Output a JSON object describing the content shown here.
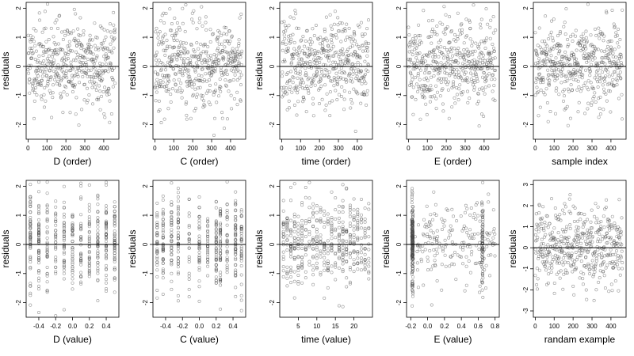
{
  "chart_data": [
    {
      "type": "scatter",
      "panel": "D (order)",
      "xlabel": "D (order)",
      "ylabel": "residuals",
      "xlim": [
        -10,
        480
      ],
      "ylim": [
        -2.5,
        2.2
      ],
      "xticks": [
        0,
        100,
        200,
        300,
        400
      ],
      "xtick_labels": [
        "0",
        "100",
        "200",
        "300",
        "400"
      ],
      "yticks": [
        -2,
        -1,
        0,
        1,
        2
      ],
      "ytick_labels": [
        "-2",
        "-1",
        "0",
        "1",
        "2"
      ],
      "hline": 0,
      "n_points": 460,
      "x_kind": "order",
      "x_range": [
        0,
        460
      ],
      "y_mean": 0.1,
      "y_sd": 0.75,
      "seed": 11
    },
    {
      "type": "scatter",
      "panel": "C (order)",
      "xlabel": "C (order)",
      "ylabel": "residuals",
      "xlim": [
        -10,
        480
      ],
      "ylim": [
        -2.5,
        2.2
      ],
      "xticks": [
        0,
        100,
        200,
        300,
        400
      ],
      "xtick_labels": [
        "0",
        "100",
        "200",
        "300",
        "400"
      ],
      "yticks": [
        -2,
        -1,
        0,
        1,
        2
      ],
      "ytick_labels": [
        "-2",
        "-1",
        "0",
        "1",
        "2"
      ],
      "hline": 0,
      "n_points": 460,
      "x_kind": "order",
      "x_range": [
        0,
        460
      ],
      "y_mean": 0.1,
      "y_sd": 0.75,
      "seed": 23
    },
    {
      "type": "scatter",
      "panel": "time (order)",
      "xlabel": "time (order)",
      "ylabel": "residuals",
      "xlim": [
        -10,
        480
      ],
      "ylim": [
        -2.5,
        2.2
      ],
      "xticks": [
        0,
        100,
        200,
        300,
        400
      ],
      "xtick_labels": [
        "0",
        "100",
        "200",
        "300",
        "400"
      ],
      "yticks": [
        -2,
        -1,
        0,
        1,
        2
      ],
      "ytick_labels": [
        "-2",
        "-1",
        "0",
        "1",
        "2"
      ],
      "hline": 0,
      "n_points": 460,
      "x_kind": "order",
      "x_range": [
        0,
        460
      ],
      "y_mean": 0.1,
      "y_sd": 0.75,
      "seed": 37
    },
    {
      "type": "scatter",
      "panel": "E (order)",
      "xlabel": "E (order)",
      "ylabel": "residuals",
      "xlim": [
        -10,
        480
      ],
      "ylim": [
        -2.5,
        2.2
      ],
      "xticks": [
        0,
        100,
        200,
        300,
        400
      ],
      "xtick_labels": [
        "0",
        "100",
        "200",
        "300",
        "400"
      ],
      "yticks": [
        -2,
        -1,
        0,
        1,
        2
      ],
      "ytick_labels": [
        "-2",
        "-1",
        "0",
        "1",
        "2"
      ],
      "hline": 0,
      "n_points": 460,
      "x_kind": "order",
      "x_range": [
        0,
        460
      ],
      "y_mean": 0.1,
      "y_sd": 0.75,
      "seed": 41
    },
    {
      "type": "scatter",
      "panel": "sample index",
      "xlabel": "sample index",
      "ylabel": "residuals",
      "xlim": [
        -10,
        480
      ],
      "ylim": [
        -2.5,
        2.2
      ],
      "xticks": [
        0,
        100,
        200,
        300,
        400
      ],
      "xtick_labels": [
        "0",
        "100",
        "200",
        "300",
        "400"
      ],
      "yticks": [
        -2,
        -1,
        0,
        1,
        2
      ],
      "ytick_labels": [
        "-2",
        "-1",
        "0",
        "1",
        "2"
      ],
      "hline": 0,
      "n_points": 460,
      "x_kind": "order",
      "x_range": [
        0,
        460
      ],
      "y_mean": 0.1,
      "y_sd": 0.75,
      "seed": 53
    },
    {
      "type": "scatter",
      "panel": "D (value)",
      "xlabel": "D (value)",
      "ylabel": "residuals",
      "xlim": [
        -0.55,
        0.55
      ],
      "ylim": [
        -2.5,
        2.2
      ],
      "xticks": [
        -0.4,
        -0.2,
        0,
        0.2,
        0.4
      ],
      "xtick_labels": [
        "-0.4",
        "-0.2",
        "0.0",
        "0.2",
        "0.4"
      ],
      "yticks": [
        -2,
        -1,
        0,
        1,
        2
      ],
      "ytick_labels": [
        "-2",
        "-1",
        "0",
        "1",
        "2"
      ],
      "hline": 0,
      "n_points": 460,
      "x_kind": "discrete",
      "x_levels": [
        -0.5,
        -0.4,
        -0.3,
        -0.2,
        -0.1,
        0,
        0.1,
        0.2,
        0.3,
        0.4,
        0.5
      ],
      "y_mean": 0.1,
      "y_sd": 0.75,
      "seed": 67
    },
    {
      "type": "scatter",
      "panel": "C (value)",
      "xlabel": "C (value)",
      "ylabel": "residuals",
      "xlim": [
        -0.55,
        0.55
      ],
      "ylim": [
        -2.5,
        2.2
      ],
      "xticks": [
        -0.4,
        -0.2,
        0,
        0.2,
        0.4
      ],
      "xtick_labels": [
        "-0.4",
        "-0.2",
        "0.0",
        "0.2",
        "0.4"
      ],
      "yticks": [
        -2,
        -1,
        0,
        1,
        2
      ],
      "ytick_labels": [
        "-2",
        "-1",
        "0",
        "1",
        "2"
      ],
      "hline": 0,
      "n_points": 460,
      "x_kind": "discrete",
      "x_levels": [
        -0.5,
        -0.43,
        -0.33,
        -0.25,
        -0.12,
        0,
        0.1,
        0.2,
        0.25,
        0.33,
        0.43,
        0.5
      ],
      "y_mean": 0.1,
      "y_sd": 0.75,
      "seed": 71
    },
    {
      "type": "scatter",
      "panel": "time (value)",
      "xlabel": "time (value)",
      "ylabel": "residuals",
      "xlim": [
        0,
        25
      ],
      "ylim": [
        -2.5,
        2.2
      ],
      "xticks": [
        5,
        10,
        15,
        20
      ],
      "xtick_labels": [
        "5",
        "10",
        "15",
        "20"
      ],
      "yticks": [
        -2,
        -1,
        0,
        1,
        2
      ],
      "ytick_labels": [
        "-2",
        "-1",
        "0",
        "1",
        "2"
      ],
      "hline": 0,
      "n_points": 460,
      "x_kind": "discrete",
      "x_levels": [
        1,
        2,
        3,
        4,
        5,
        6,
        7,
        8,
        9,
        10,
        11,
        12,
        13,
        14,
        15,
        16,
        17,
        18,
        19,
        20,
        21,
        22,
        23,
        24
      ],
      "y_mean": 0.1,
      "y_sd": 0.75,
      "seed": 83
    },
    {
      "type": "scatter",
      "panel": "E (value)",
      "xlabel": "E (value)",
      "ylabel": "residuals",
      "xlim": [
        -0.25,
        0.85
      ],
      "ylim": [
        -2.5,
        2.2
      ],
      "xticks": [
        -0.2,
        0,
        0.2,
        0.4,
        0.6,
        0.8
      ],
      "xtick_labels": [
        "-0.2",
        "0.0",
        "0.2",
        "0.4",
        "0.6",
        "0.8"
      ],
      "yticks": [
        -2,
        -1,
        0,
        1,
        2
      ],
      "ytick_labels": [
        "-2",
        "-1",
        "0",
        "1",
        "2"
      ],
      "hline": 0,
      "n_points": 460,
      "x_kind": "E_mixture",
      "y_mean": 0.1,
      "y_sd": 0.75,
      "seed": 97
    },
    {
      "type": "scatter",
      "panel": "randam example",
      "xlabel": "randam example",
      "ylabel": "residuals",
      "xlim": [
        -10,
        480
      ],
      "ylim": [
        -3.3,
        3.2
      ],
      "xticks": [
        0,
        100,
        200,
        300,
        400
      ],
      "xtick_labels": [
        "0",
        "100",
        "200",
        "300",
        "400"
      ],
      "yticks": [
        -3,
        -2,
        -1,
        0,
        1,
        2,
        3
      ],
      "ytick_labels": [
        "-3",
        "-2",
        "-1",
        "0",
        "1",
        "2",
        "3"
      ],
      "hline": 0,
      "n_points": 460,
      "x_kind": "order",
      "x_range": [
        0,
        460
      ],
      "y_mean": 0.1,
      "y_sd": 0.95,
      "seed": 101
    }
  ]
}
